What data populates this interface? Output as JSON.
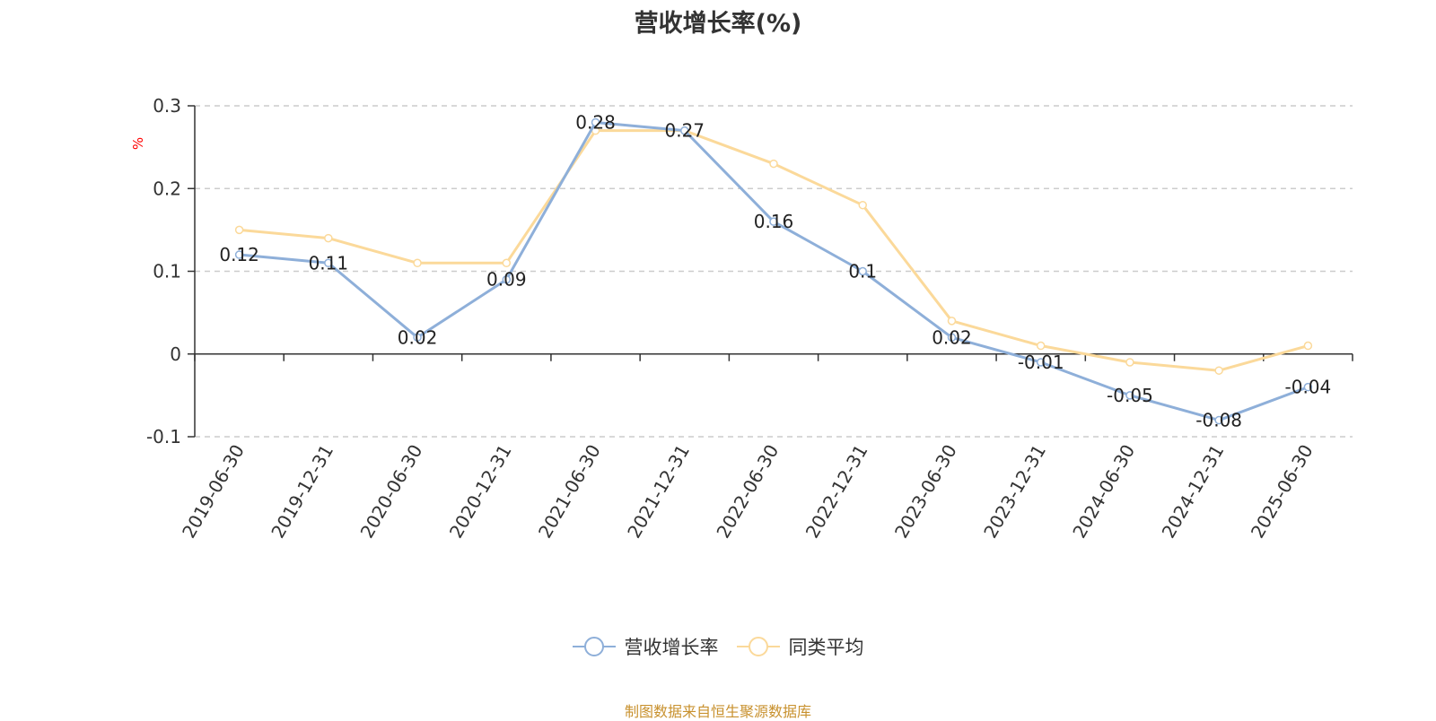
{
  "title": "营收增长率(%)",
  "source_text": "制图数据来自恒生聚源数据库",
  "chart_data": {
    "type": "line",
    "title": "营收增长率(%)",
    "ylabel": "%",
    "xlabel": "",
    "ylim": [
      -0.1,
      0.3
    ],
    "yticks": [
      -0.1,
      0,
      0.1,
      0.2,
      0.3
    ],
    "ytick_labels": [
      "-0.1",
      "0",
      "0.1",
      "0.2",
      "0.3"
    ],
    "grid": true,
    "legend_position": "bottom-center",
    "categories": [
      "2019-06-30",
      "2019-12-31",
      "2020-06-30",
      "2020-12-31",
      "2021-06-30",
      "2021-12-31",
      "2022-06-30",
      "2022-12-31",
      "2023-06-30",
      "2023-12-31",
      "2024-06-30",
      "2024-12-31",
      "2025-06-30"
    ],
    "series": [
      {
        "name": "营收增长率",
        "color": "#8eafd9",
        "values": [
          0.12,
          0.11,
          0.02,
          0.09,
          0.28,
          0.27,
          0.16,
          0.1,
          0.02,
          -0.01,
          -0.05,
          -0.08,
          -0.04
        ],
        "labels": [
          "0.12",
          "0.11",
          "0.02",
          "0.09",
          "0.28",
          "0.27",
          "0.16",
          "0.1",
          "0.02",
          "-0.01",
          "-0.05",
          "-0.08",
          "-0.04"
        ]
      },
      {
        "name": "同类平均",
        "color": "#fbd99a",
        "values": [
          0.15,
          0.14,
          0.11,
          0.11,
          0.27,
          0.27,
          0.23,
          0.18,
          0.04,
          0.01,
          -0.01,
          -0.02,
          0.01
        ]
      }
    ]
  }
}
